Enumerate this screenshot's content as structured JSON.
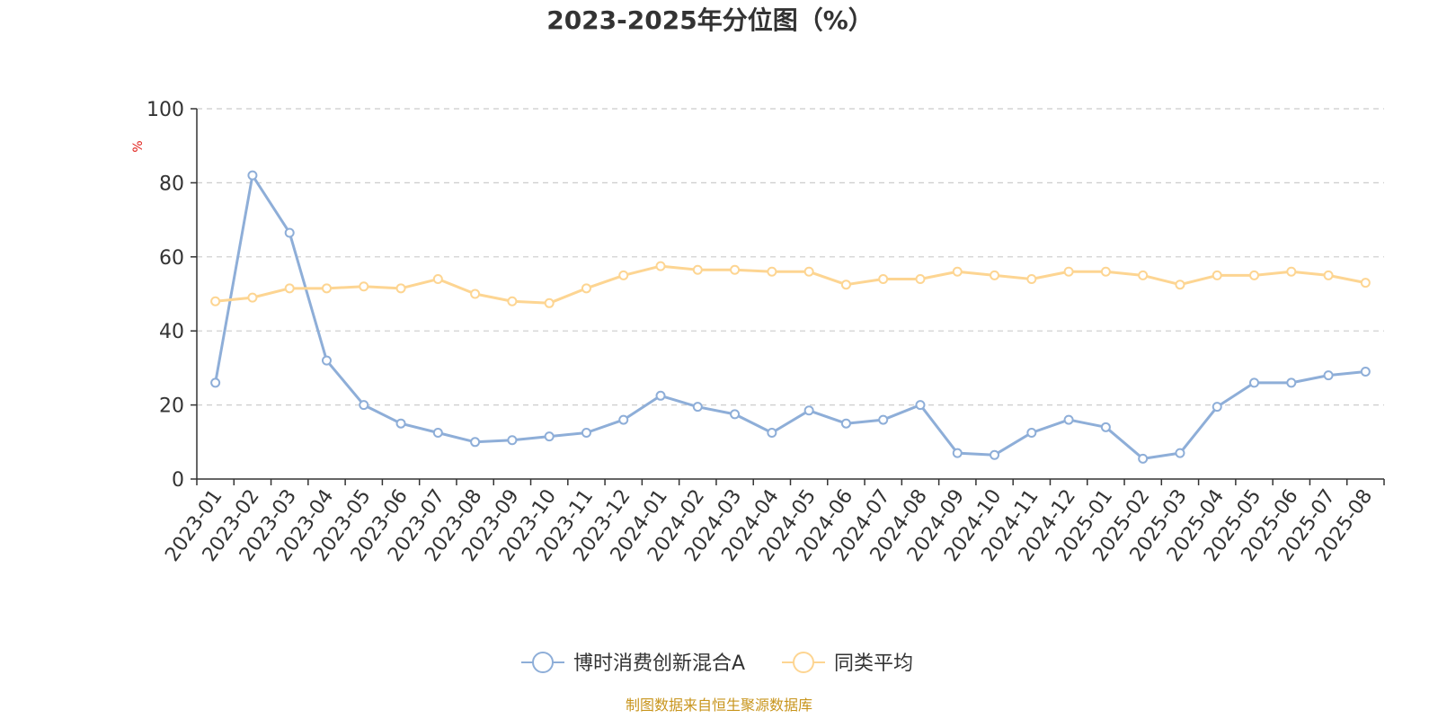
{
  "colors": {
    "series_a": "#8eaed8",
    "series_b": "#fdd592",
    "axis": "#333333",
    "grid": "#cccccc",
    "title": "#333333",
    "unit": "#e0201b",
    "source": "#c8951d"
  },
  "source_note": "制图数据来自恒生聚源数据库",
  "chart_data": {
    "type": "line",
    "title": "2023-2025年分位图（%）",
    "ylabel": "%",
    "xlabel": "",
    "ylim": [
      0,
      100
    ],
    "y_ticks": [
      0,
      20,
      40,
      60,
      80,
      100
    ],
    "grid": true,
    "legend_position": "bottom",
    "categories": [
      "2023-01",
      "2023-02",
      "2023-03",
      "2023-04",
      "2023-05",
      "2023-06",
      "2023-07",
      "2023-08",
      "2023-09",
      "2023-10",
      "2023-11",
      "2023-12",
      "2024-01",
      "2024-02",
      "2024-03",
      "2024-04",
      "2024-05",
      "2024-06",
      "2024-07",
      "2024-08",
      "2024-09",
      "2024-10",
      "2024-11",
      "2024-12",
      "2025-01",
      "2025-02",
      "2025-03",
      "2025-04",
      "2025-05",
      "2025-06",
      "2025-07",
      "2025-08"
    ],
    "series": [
      {
        "name": "博时消费创新混合A",
        "values": [
          26,
          82,
          66.5,
          32,
          20,
          15,
          12.5,
          10,
          10.5,
          11.5,
          12.5,
          16,
          22.5,
          19.5,
          17.5,
          12.5,
          18.5,
          15,
          16,
          20,
          7,
          6.5,
          12.5,
          16,
          14,
          5.5,
          7,
          19.5,
          26,
          26,
          28,
          29
        ]
      },
      {
        "name": "同类平均",
        "values": [
          48,
          49,
          51.5,
          51.5,
          52,
          51.5,
          54,
          50,
          48,
          47.5,
          51.5,
          55,
          57.5,
          56.5,
          56.5,
          56,
          56,
          52.5,
          54,
          54,
          56,
          55,
          54,
          56,
          56,
          55,
          52.5,
          55,
          55,
          56,
          55,
          53
        ]
      }
    ]
  }
}
